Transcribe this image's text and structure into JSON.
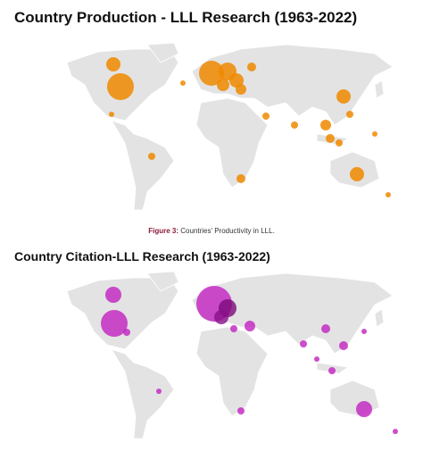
{
  "figure1": {
    "title": "Country Production - LLL Research (1963-2022)",
    "caption_label": "Figure 3:",
    "caption_text": "Countries' Productivity in LLL."
  },
  "figure2": {
    "title": "Country Citation-LLL Research (1963-2022)"
  }
}
